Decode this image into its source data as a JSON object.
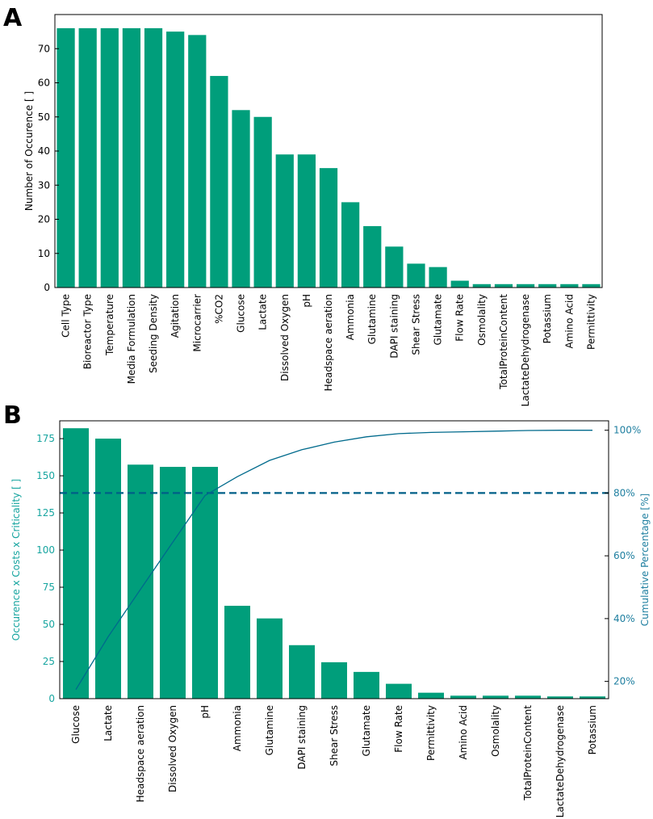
{
  "colors": {
    "bar": "#009e7b",
    "cumulative_line": "#006a8c",
    "threshold_line": "#005f87",
    "left_axis_b": "#17a5a0",
    "right_axis_b": "#1f7fa0"
  },
  "chart_data": [
    {
      "panel": "A",
      "type": "bar",
      "title": "",
      "xlabel": "",
      "ylabel": "Number of Occurence   [ ]",
      "ylim": [
        0,
        80
      ],
      "yticks": [
        0,
        10,
        20,
        30,
        40,
        50,
        60,
        70
      ],
      "categories": [
        "Cell Type",
        "Bioreactor Type",
        "Temperature",
        "Media Formulation",
        "Seeding Density",
        "Agitation",
        "Microcarrier",
        "%CO2",
        "Glucose",
        "Lactate",
        "Dissolved Oxygen",
        "pH",
        "Headspace aeration",
        "Ammonia",
        "Glutamine",
        "DAPI staining",
        "Shear Stress",
        "Glutamate",
        "Flow Rate",
        "Osmolality",
        "TotalProteinContent",
        "LactateDehydrogenase",
        "Potassium",
        "Amino Acid",
        "Permittivity"
      ],
      "values": [
        76,
        76,
        76,
        76,
        76,
        75,
        74,
        62,
        52,
        50,
        39,
        39,
        35,
        25,
        18,
        12,
        7,
        6,
        2,
        1,
        1,
        1,
        1,
        1,
        1
      ]
    },
    {
      "panel": "B",
      "type": "bar",
      "title": "",
      "xlabel": "",
      "ylabel": "Occurence x Costs x Criticality   [ ]",
      "ylabel_right": "Cumulative Percentage   [%]",
      "ylim": [
        0,
        187
      ],
      "yticks": [
        0,
        25,
        50,
        75,
        100,
        125,
        150,
        175
      ],
      "y2lim": [
        14.5,
        103
      ],
      "y2ticks": [
        20,
        40,
        60,
        80,
        100
      ],
      "y2tick_labels": [
        "20%",
        "40%",
        "60%",
        "80%",
        "100%"
      ],
      "threshold_percent": 80,
      "categories": [
        "Glucose",
        "Lactate",
        "Headspace aeration",
        "Dissolved Oxygen",
        "pH",
        "Ammonia",
        "Glutamine",
        "DAPI staining",
        "Shear Stress",
        "Glutamate",
        "Flow Rate",
        "Permittivity",
        "Amino Acid",
        "Osmolality",
        "TotalProteinContent",
        "LactateDehydrogenase",
        "Potassium"
      ],
      "values": [
        182,
        175,
        157.5,
        156,
        156,
        62.5,
        54,
        36,
        24.5,
        18,
        10,
        4,
        2,
        2,
        2,
        1.5,
        1.5
      ],
      "series": [
        {
          "name": "Cumulative Percentage",
          "type": "line",
          "values": [
            17.4,
            34.2,
            49.3,
            64.3,
            79.2,
            85.2,
            90.4,
            93.8,
            96.2,
            97.9,
            98.9,
            99.3,
            99.5,
            99.7,
            99.9,
            100.0,
            100.0
          ]
        }
      ]
    }
  ]
}
